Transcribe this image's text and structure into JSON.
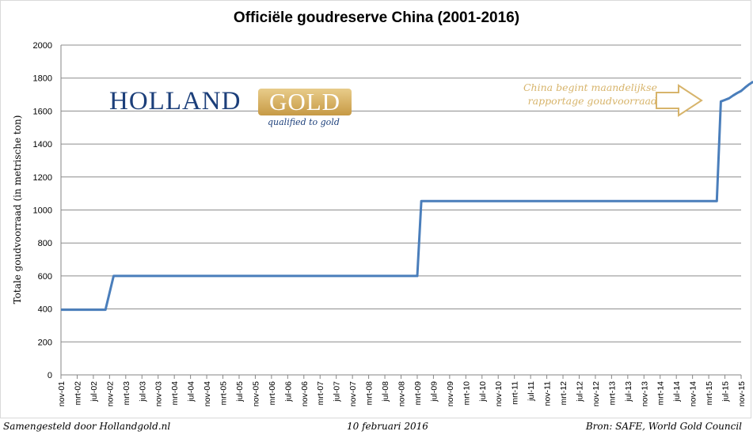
{
  "chart_data": {
    "type": "line",
    "title": "Officiële goudreserve China (2001-2016)",
    "xlabel": "",
    "ylabel": "Totale goudvoorraad (in metrische ton)",
    "ylim": [
      0,
      2000
    ],
    "yticks": [
      0,
      200,
      400,
      600,
      800,
      1000,
      1200,
      1400,
      1600,
      1800,
      2000
    ],
    "grid": "horizontal",
    "legend": "none",
    "line_color": "#4a7ebb",
    "categories": [
      "nov-01",
      "mrt-02",
      "jul-02",
      "nov-02",
      "mrt-03",
      "jul-03",
      "nov-03",
      "mrt-04",
      "jul-04",
      "nov-04",
      "mrt-05",
      "jul-05",
      "nov-05",
      "mrt-06",
      "jul-06",
      "nov-06",
      "mrt-07",
      "jul-07",
      "nov-07",
      "mrt-08",
      "jul-08",
      "nov-08",
      "mrt-09",
      "jul-09",
      "nov-09",
      "mrt-10",
      "jul-10",
      "nov-10",
      "mrt-11",
      "jul-11",
      "nov-11",
      "mrt-12",
      "jul-12",
      "nov-12",
      "mrt-13",
      "jul-13",
      "nov-13",
      "mrt-14",
      "jul-14",
      "nov-14",
      "mrt-15",
      "jul-15",
      "nov-15"
    ],
    "points": [
      {
        "x": "2001-11",
        "y": 395
      },
      {
        "x": "2002-10",
        "y": 395
      },
      {
        "x": "2002-12",
        "y": 600
      },
      {
        "x": "2009-03",
        "y": 600
      },
      {
        "x": "2009-04",
        "y": 1054
      },
      {
        "x": "2015-05",
        "y": 1054
      },
      {
        "x": "2015-06",
        "y": 1658
      },
      {
        "x": "2015-07",
        "y": 1667
      },
      {
        "x": "2015-08",
        "y": 1677
      },
      {
        "x": "2015-09",
        "y": 1694
      },
      {
        "x": "2015-10",
        "y": 1709
      },
      {
        "x": "2015-11",
        "y": 1722
      },
      {
        "x": "2015-12",
        "y": 1743
      },
      {
        "x": "2016-01",
        "y": 1762
      },
      {
        "x": "2016-02",
        "y": 1778
      }
    ],
    "annotation": {
      "text_line1": "China begint maandelijkse",
      "text_line2": "rapportage goudvoorraad",
      "color": "#d7b46b"
    }
  },
  "logo": {
    "word1": "HOLLAND",
    "word2": "GOLD",
    "tagline": "qualified to gold",
    "primary_color": "#1c3f7a",
    "gold_color": "#c79a45"
  },
  "footer": {
    "left": "Samengesteld door Hollandgold.nl",
    "center": "10 februari 2016",
    "right": "Bron: SAFE, World Gold Council"
  }
}
